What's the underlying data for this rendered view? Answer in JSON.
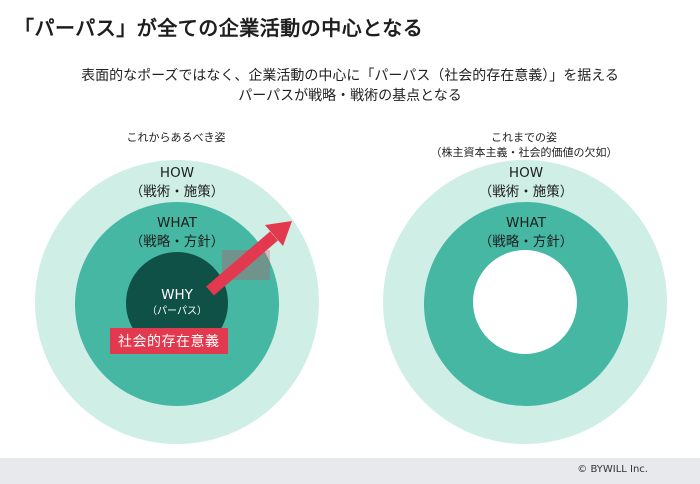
{
  "title": "「パーパス」が全ての企業活動の中心となる",
  "subtitle_line1": "表面的なポーズではなく、企業活動の中心に「パーパス（社会的存在意義）」を据える",
  "subtitle_line2": "パーパスが戦略・戦術の基点となる",
  "left_panel": {
    "heading": "これからあるべき姿",
    "outer_label": "HOW",
    "outer_sub": "（戦術・施策）",
    "middle_label": "WHAT",
    "middle_sub": "（戦略・方針）",
    "inner_label": "WHY",
    "inner_sub": "（パーパス）",
    "badge": "社会的存在意義"
  },
  "right_panel": {
    "heading": "これまでの姿",
    "heading_sub": "（株主資本主義・社会的価値の欠如）",
    "outer_label": "HOW",
    "outer_sub": "（戦術・施策）",
    "middle_label": "WHAT",
    "middle_sub": "（戦略・方針）"
  },
  "colors": {
    "outer": "#cfeee6",
    "middle": "#45b7a3",
    "inner": "#0f5147",
    "accent": "#e2394e",
    "footer": "#e7e9ec"
  },
  "footer": {
    "copyright": "© BYWILL Inc."
  }
}
